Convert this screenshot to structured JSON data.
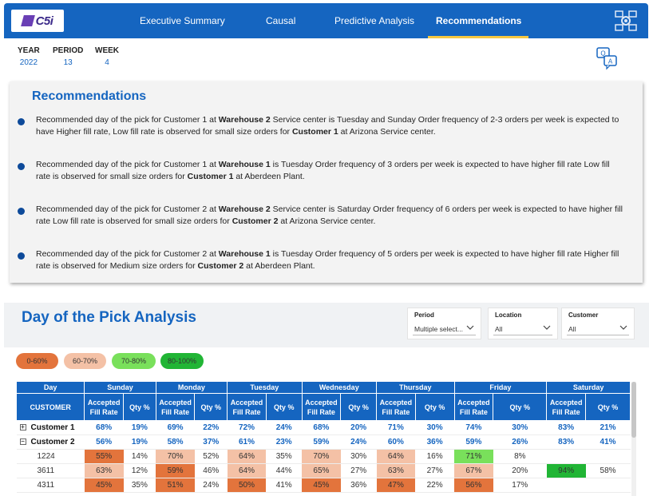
{
  "nav": {
    "logo_text": "C5i",
    "tabs": [
      {
        "label": "Executive Summary"
      },
      {
        "label": "Causal"
      },
      {
        "label": "Predictive Analysis"
      },
      {
        "label": "Recommendations",
        "active": true
      }
    ],
    "settings_icon": "settings-network-icon"
  },
  "period_info": [
    {
      "label": "YEAR",
      "value": "2022"
    },
    {
      "label": "PERIOD",
      "value": "13"
    },
    {
      "label": "WEEK",
      "value": "4"
    }
  ],
  "qa_icon": "q-and-a-icon",
  "recommendations": {
    "title": "Recommendations",
    "items": [
      {
        "parts": [
          {
            "t": "Recommended day of the pick for Customer 1 at "
          },
          {
            "t": "Warehouse 2",
            "b": true
          },
          {
            "t": " Service center is Tuesday and Sunday Order frequency of 2-3 orders per week is expected to have Higher fill rate, Low fill rate is observed for small size orders for "
          },
          {
            "t": "Customer 1",
            "b": true
          },
          {
            "t": " at Arizona Service center."
          }
        ]
      },
      {
        "parts": [
          {
            "t": "Recommended day of the pick for Customer 1 at "
          },
          {
            "t": "Warehouse 1",
            "b": true
          },
          {
            "t": " is Tuesday Order frequency of 3 orders per week is expected to have higher fill rate Low fill rate is observed for small size orders for "
          },
          {
            "t": "Customer 1",
            "b": true
          },
          {
            "t": " at Aberdeen Plant."
          }
        ]
      },
      {
        "parts": [
          {
            "t": "Recommended day of the pick for Customer 2  at "
          },
          {
            "t": "Warehouse 2",
            "b": true
          },
          {
            "t": " Service center is Saturday Order frequency of 6 orders per week is expected to have higher fill rate Low fill rate is observed for small size orders for "
          },
          {
            "t": "Customer 2",
            "b": true
          },
          {
            "t": "  at Arizona Service center."
          }
        ]
      },
      {
        "parts": [
          {
            "t": "Recommended day of the pick for Customer 2 at "
          },
          {
            "t": "Warehouse 1",
            "b": true
          },
          {
            "t": " is Tuesday Order frequency of 5 orders per week is expected to have higher fill rate Higher fill rate is observed for Medium size orders for "
          },
          {
            "t": "Customer 2",
            "b": true
          },
          {
            "t": " at Aberdeen Plant."
          }
        ]
      }
    ]
  },
  "analysis": {
    "title": "Day of the Pick Analysis",
    "slicers": [
      {
        "label": "Period",
        "value": "Multiple select..."
      },
      {
        "label": "Location",
        "value": "All"
      },
      {
        "label": "Customer",
        "value": "All"
      }
    ],
    "legend": [
      {
        "label": "0-60%",
        "color": "#e3743c"
      },
      {
        "label": "60-70%",
        "color": "#f4c1a6"
      },
      {
        "label": "70-80%",
        "color": "#79e05b"
      },
      {
        "label": "80-100%",
        "color": "#21b535"
      }
    ],
    "table": {
      "day_header": "Day",
      "customer_header": "CUSTOMER",
      "days": [
        "Sunday",
        "Monday",
        "Tuesday",
        "Wednesday",
        "Thursday",
        "Friday",
        "Saturday"
      ],
      "sub_headers": [
        "Accepted Fill Rate",
        "Qty %"
      ],
      "rows": [
        {
          "name": "Customer 1",
          "level": 0,
          "expander": "+",
          "cells": [
            "68%",
            "19%",
            "69%",
            "22%",
            "72%",
            "24%",
            "68%",
            "20%",
            "71%",
            "30%",
            "74%",
            "30%",
            "83%",
            "21%"
          ],
          "colors": []
        },
        {
          "name": "Customer 2",
          "level": 0,
          "expander": "−",
          "cells": [
            "56%",
            "19%",
            "58%",
            "37%",
            "61%",
            "23%",
            "59%",
            "24%",
            "60%",
            "36%",
            "59%",
            "26%",
            "83%",
            "41%"
          ],
          "colors": []
        },
        {
          "name": "1224",
          "level": 1,
          "cells": [
            "55%",
            "14%",
            "70%",
            "52%",
            "64%",
            "35%",
            "70%",
            "30%",
            "64%",
            "16%",
            "71%",
            "8%",
            "",
            ""
          ],
          "colors": [
            "#e3743c",
            "",
            "#f4c1a6",
            "",
            "#f4c1a6",
            "",
            "#f4c1a6",
            "",
            "#f4c1a6",
            "",
            "#79e05b",
            "",
            "",
            ""
          ]
        },
        {
          "name": "3611",
          "level": 1,
          "cells": [
            "63%",
            "12%",
            "59%",
            "46%",
            "64%",
            "44%",
            "65%",
            "27%",
            "63%",
            "27%",
            "67%",
            "20%",
            "94%",
            "58%"
          ],
          "colors": [
            "#f4c1a6",
            "",
            "#e3743c",
            "",
            "#f4c1a6",
            "",
            "#f4c1a6",
            "",
            "#f4c1a6",
            "",
            "#f4c1a6",
            "",
            "#21b535",
            ""
          ]
        },
        {
          "name": "4311",
          "level": 1,
          "cells": [
            "45%",
            "35%",
            "51%",
            "24%",
            "50%",
            "41%",
            "45%",
            "36%",
            "47%",
            "22%",
            "56%",
            "17%",
            "",
            ""
          ],
          "colors": [
            "#e3743c",
            "",
            "#e3743c",
            "",
            "#e3743c",
            "",
            "#e3743c",
            "",
            "#e3743c",
            "",
            "#e3743c",
            "",
            "",
            ""
          ]
        }
      ]
    }
  }
}
